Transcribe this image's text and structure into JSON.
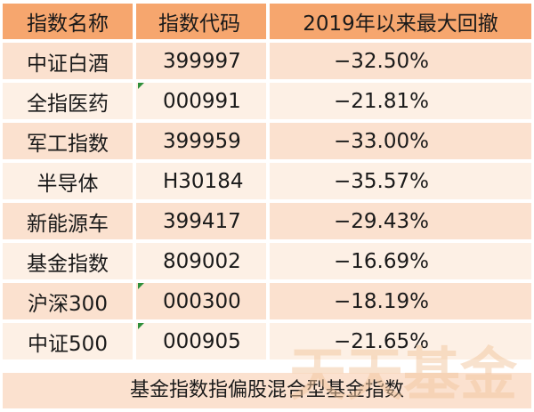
{
  "table": {
    "headers": [
      "指数名称",
      "指数代码",
      "2019年以来最大回撤"
    ],
    "rows": [
      {
        "name": "中证白酒",
        "code": "399997",
        "drawdown": "−32.50%"
      },
      {
        "name": "全指医药",
        "code": "000991",
        "drawdown": "−21.81%"
      },
      {
        "name": "军工指数",
        "code": "399959",
        "drawdown": "−33.00%"
      },
      {
        "name": "半导体",
        "code": "H30184",
        "drawdown": "−35.57%"
      },
      {
        "name": "新能源车",
        "code": "399417",
        "drawdown": "−29.43%"
      },
      {
        "name": "基金指数",
        "code": "809002",
        "drawdown": "−16.69%"
      },
      {
        "name": "沪深300",
        "code": "000300",
        "drawdown": "−18.19%"
      },
      {
        "name": "中证500",
        "code": "000905",
        "drawdown": "−21.65%"
      }
    ]
  },
  "footer": "基金指数指偏股混合型基金指数",
  "watermark": "天天基金",
  "colors": {
    "header_bg": "#f6a66e",
    "row_bg_odd": "#fbe1cf",
    "row_bg_even": "#fdf0e5",
    "marker": "#2f8f3a",
    "watermark": "#f3c79f"
  }
}
